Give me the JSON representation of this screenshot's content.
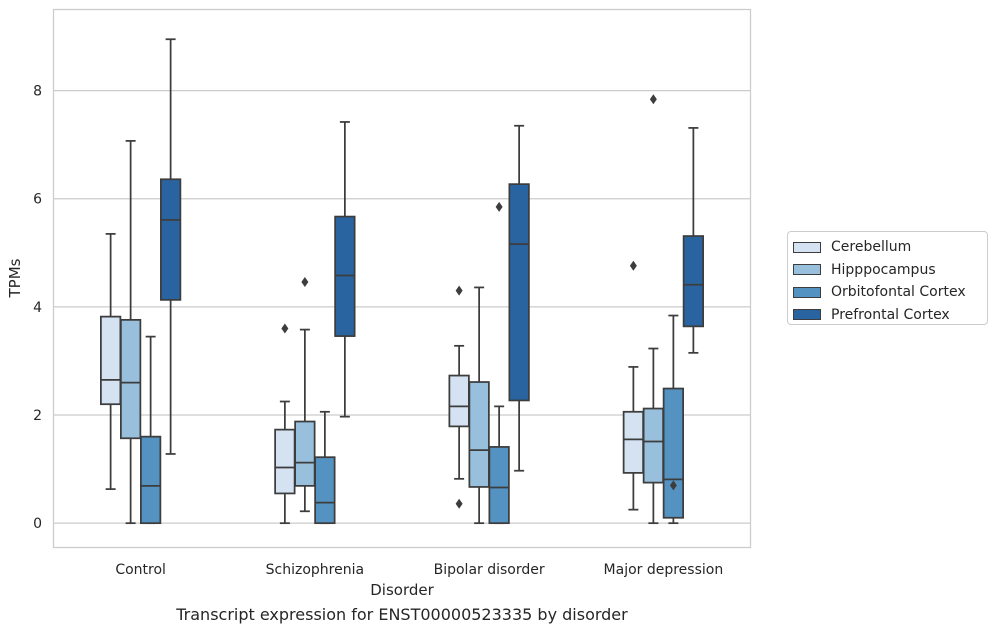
{
  "chart_data": {
    "type": "boxplot",
    "title": "Transcript expression for ENST00000523335 by disorder",
    "xlabel": "Disorder",
    "ylabel": "TPMs",
    "ylim": [
      -0.45,
      9.5
    ],
    "yticks": [
      0,
      2,
      4,
      6,
      8
    ],
    "grid": "horizontal",
    "legend_position": "right",
    "categories": [
      "Control",
      "Schizophrenia",
      "Bipolar disorder",
      "Major depression"
    ],
    "series": [
      {
        "name": "Cerebellum",
        "color": "#d4e2f1",
        "boxes": [
          {
            "whisker_low": 0.63,
            "q1": 2.2,
            "median": 2.65,
            "q3": 3.82,
            "whisker_high": 5.35,
            "outliers": []
          },
          {
            "whisker_low": 0.0,
            "q1": 0.55,
            "median": 1.03,
            "q3": 1.73,
            "whisker_high": 2.25,
            "outliers": [
              3.6
            ]
          },
          {
            "whisker_low": 0.82,
            "q1": 1.79,
            "median": 2.16,
            "q3": 2.73,
            "whisker_high": 3.28,
            "outliers": [
              4.3,
              0.36
            ]
          },
          {
            "whisker_low": 0.25,
            "q1": 0.93,
            "median": 1.55,
            "q3": 2.06,
            "whisker_high": 2.89,
            "outliers": [
              4.76
            ]
          }
        ]
      },
      {
        "name": "Hipppocampus",
        "color": "#98c0dc",
        "boxes": [
          {
            "whisker_low": 0.0,
            "q1": 1.57,
            "median": 2.6,
            "q3": 3.76,
            "whisker_high": 7.07,
            "outliers": []
          },
          {
            "whisker_low": 0.22,
            "q1": 0.69,
            "median": 1.12,
            "q3": 1.88,
            "whisker_high": 3.58,
            "outliers": [
              4.46
            ]
          },
          {
            "whisker_low": 0.0,
            "q1": 0.67,
            "median": 1.35,
            "q3": 2.61,
            "whisker_high": 4.36,
            "outliers": []
          },
          {
            "whisker_low": 0.0,
            "q1": 0.75,
            "median": 1.51,
            "q3": 2.12,
            "whisker_high": 3.23,
            "outliers": [
              7.84
            ]
          }
        ]
      },
      {
        "name": "Orbitofontal Cortex",
        "color": "#5493c1",
        "boxes": [
          {
            "whisker_low": 0.0,
            "q1": 0.0,
            "median": 0.69,
            "q3": 1.6,
            "whisker_high": 3.45,
            "outliers": []
          },
          {
            "whisker_low": 0.0,
            "q1": 0.0,
            "median": 0.38,
            "q3": 1.22,
            "whisker_high": 2.06,
            "outliers": []
          },
          {
            "whisker_low": 0.0,
            "q1": 0.0,
            "median": 0.66,
            "q3": 1.41,
            "whisker_high": 2.16,
            "outliers": [
              5.85
            ]
          },
          {
            "whisker_low": 0.0,
            "q1": 0.1,
            "median": 0.81,
            "q3": 2.49,
            "whisker_high": 3.84,
            "outliers": [
              0.7
            ]
          }
        ]
      },
      {
        "name": "Prefrontal Cortex",
        "color": "#2a64a0",
        "boxes": [
          {
            "whisker_low": 1.28,
            "q1": 4.13,
            "median": 5.61,
            "q3": 6.36,
            "whisker_high": 8.95,
            "outliers": []
          },
          {
            "whisker_low": 1.97,
            "q1": 3.46,
            "median": 4.58,
            "q3": 5.67,
            "whisker_high": 7.42,
            "outliers": []
          },
          {
            "whisker_low": 0.97,
            "q1": 2.27,
            "median": 5.16,
            "q3": 6.27,
            "whisker_high": 7.35,
            "outliers": []
          },
          {
            "whisker_low": 3.15,
            "q1": 3.64,
            "median": 4.41,
            "q3": 5.31,
            "whisker_high": 7.31,
            "outliers": []
          }
        ]
      }
    ]
  }
}
